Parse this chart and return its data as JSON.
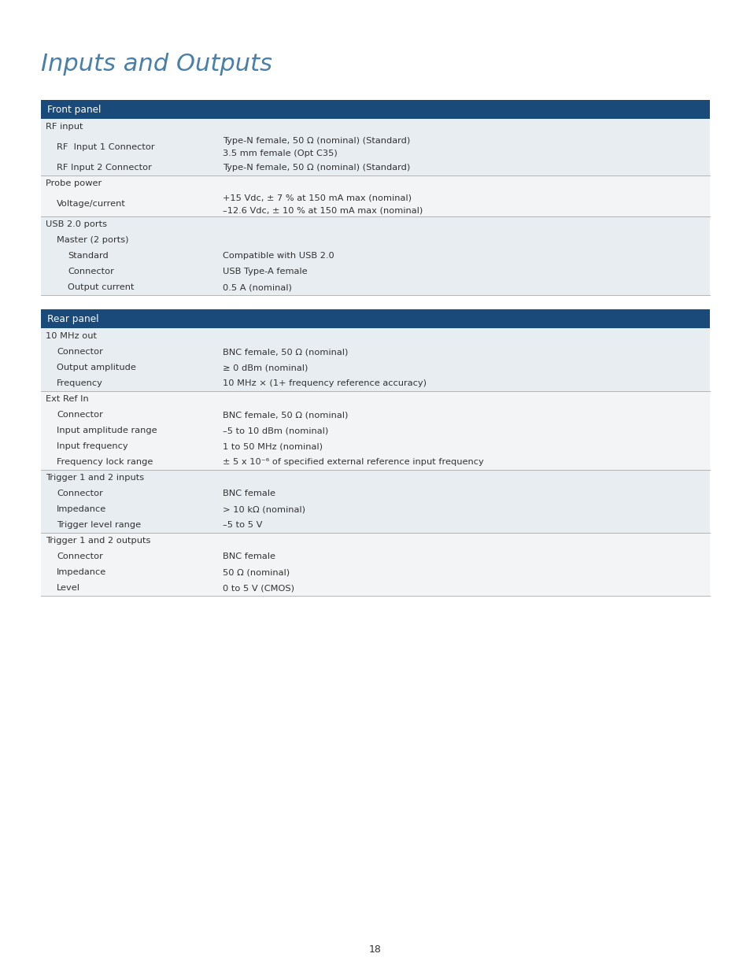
{
  "title": "Inputs and Outputs",
  "title_color": "#4a7fa8",
  "header_bg": "#1a4a7a",
  "header_text_color": "#ffffff",
  "row_bg_a": "#e8edf2",
  "row_bg_b": "#f2f4f6",
  "separator_color": "#aaaaaa",
  "text_color": "#333333",
  "page_number": "18",
  "page_bg": "#ffffff",
  "sections": [
    {
      "header": "Front panel",
      "rows": [
        {
          "label": "RF input",
          "value": "",
          "level": 0,
          "group": 0,
          "sep_after": false
        },
        {
          "label": "RF  Input 1 Connector",
          "value": "Type-N female, 50 Ω (nominal) (Standard)\n3.5 mm female (Opt C35)",
          "level": 1,
          "group": 0,
          "sep_after": false
        },
        {
          "label": "RF Input 2 Connector",
          "value": "Type-N female, 50 Ω (nominal) (Standard)",
          "level": 1,
          "group": 0,
          "sep_after": true
        },
        {
          "label": "Probe power",
          "value": "",
          "level": 0,
          "group": 1,
          "sep_after": false
        },
        {
          "label": "Voltage/current",
          "value": "+15 Vdc, ± 7 % at 150 mA max (nominal)\n–12.6 Vdc, ± 10 % at 150 mA max (nominal)",
          "level": 1,
          "group": 1,
          "sep_after": true
        },
        {
          "label": "USB 2.0 ports",
          "value": "",
          "level": 0,
          "group": 2,
          "sep_after": false
        },
        {
          "label": "Master (2 ports)",
          "value": "",
          "level": 1,
          "group": 2,
          "sep_after": false
        },
        {
          "label": "Standard",
          "value": "Compatible with USB 2.0",
          "level": 2,
          "group": 2,
          "sep_after": false
        },
        {
          "label": "Connector",
          "value": "USB Type-A female",
          "level": 2,
          "group": 2,
          "sep_after": false
        },
        {
          "label": "Output current",
          "value": "0.5 A (nominal)",
          "level": 2,
          "group": 2,
          "sep_after": false
        }
      ]
    },
    {
      "header": "Rear panel",
      "rows": [
        {
          "label": "10 MHz out",
          "value": "",
          "level": 0,
          "group": 0,
          "sep_after": false
        },
        {
          "label": "Connector",
          "value": "BNC female, 50 Ω (nominal)",
          "level": 1,
          "group": 0,
          "sep_after": false
        },
        {
          "label": "Output amplitude",
          "value": "≥ 0 dBm (nominal)",
          "level": 1,
          "group": 0,
          "sep_after": false
        },
        {
          "label": "Frequency",
          "value": "10 MHz × (1+ frequency reference accuracy)",
          "level": 1,
          "group": 0,
          "sep_after": true
        },
        {
          "label": "Ext Ref In",
          "value": "",
          "level": 0,
          "group": 1,
          "sep_after": false
        },
        {
          "label": "Connector",
          "value": "BNC female, 50 Ω (nominal)",
          "level": 1,
          "group": 1,
          "sep_after": false
        },
        {
          "label": "Input amplitude range",
          "value": "–5 to 10 dBm (nominal)",
          "level": 1,
          "group": 1,
          "sep_after": false
        },
        {
          "label": "Input frequency",
          "value": "1 to 50 MHz (nominal)",
          "level": 1,
          "group": 1,
          "sep_after": false
        },
        {
          "label": "Frequency lock range",
          "value": "± 5 x 10⁻⁶ of specified external reference input frequency",
          "level": 1,
          "group": 1,
          "sep_after": true
        },
        {
          "label": "Trigger 1 and 2 inputs",
          "value": "",
          "level": 0,
          "group": 2,
          "sep_after": false
        },
        {
          "label": "Connector",
          "value": "BNC female",
          "level": 1,
          "group": 2,
          "sep_after": false
        },
        {
          "label": "Impedance",
          "value": "> 10 kΩ (nominal)",
          "level": 1,
          "group": 2,
          "sep_after": false
        },
        {
          "label": "Trigger level range",
          "value": "–5 to 5 V",
          "level": 1,
          "group": 2,
          "sep_after": true
        },
        {
          "label": "Trigger 1 and 2 outputs",
          "value": "",
          "level": 0,
          "group": 3,
          "sep_after": false
        },
        {
          "label": "Connector",
          "value": "BNC female",
          "level": 1,
          "group": 3,
          "sep_after": false
        },
        {
          "label": "Impedance",
          "value": "50 Ω (nominal)",
          "level": 1,
          "group": 3,
          "sep_after": false
        },
        {
          "label": "Level",
          "value": "0 to 5 V (CMOS)",
          "level": 1,
          "group": 3,
          "sep_after": false
        }
      ]
    }
  ]
}
